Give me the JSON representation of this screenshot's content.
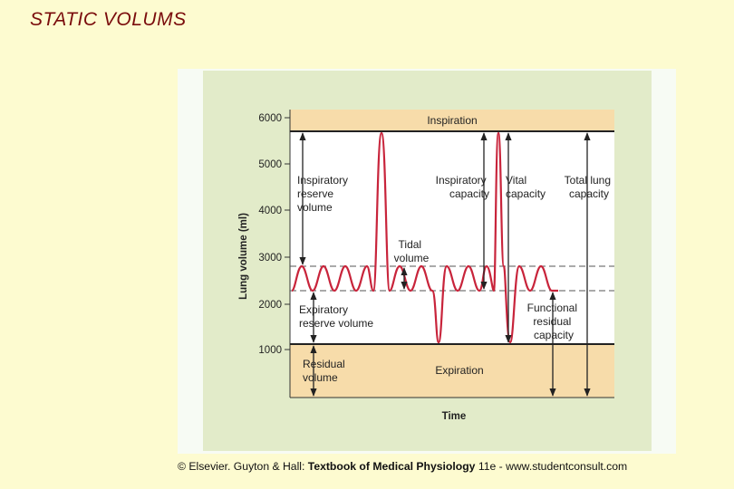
{
  "slide": {
    "title": "STATIC VOLUMS"
  },
  "figure": {
    "y_axis_label": "Lung volume (ml)",
    "x_axis_label": "Time",
    "y_ticks": [
      "6000",
      "5000",
      "4000",
      "3000",
      "2000",
      "1000"
    ],
    "band_top_label": "Inspiration",
    "band_bottom_label": "Expiration",
    "labels": {
      "inspiratory_reserve_volume": [
        "Inspiratory",
        "reserve",
        "volume"
      ],
      "tidal_volume": [
        "Tidal",
        "volume"
      ],
      "inspiratory_capacity": [
        "Inspiratory",
        "capacity"
      ],
      "vital_capacity": [
        "Vital",
        "capacity"
      ],
      "total_lung_capacity": [
        "Total lung",
        "capacity"
      ],
      "expiratory_reserve_volume": [
        "Expiratory",
        "reserve volume"
      ],
      "functional_residual_capacity": [
        "Functional",
        "residual",
        "capacity"
      ],
      "residual_volume": [
        "Residual",
        "volume"
      ]
    },
    "colors": {
      "trace": "#c8243b",
      "band": "#f7dcaa",
      "plot_bg": "#ffffff",
      "panel_bg": "#e2ebc9"
    }
  },
  "credit": {
    "prefix": "© Elsevier. Guyton & Hall: ",
    "book": "Textbook of Medical Physiology",
    "suffix": " 11e - www.studentconsult.com"
  }
}
